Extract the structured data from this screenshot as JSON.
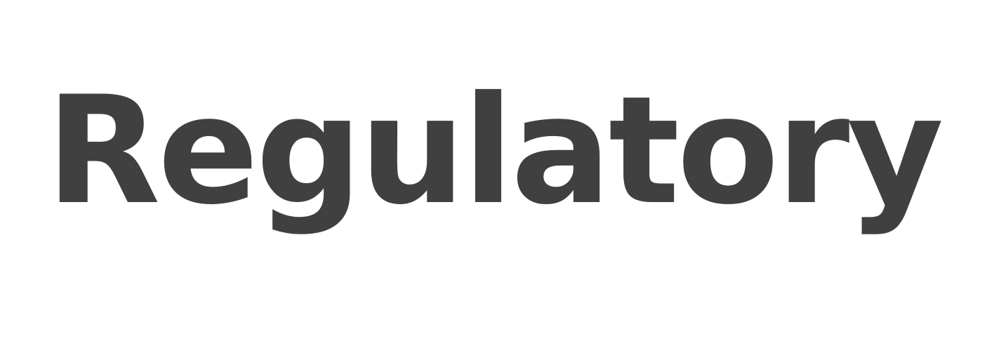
{
  "word": "Regulatory",
  "colors": {
    "text": "#404040",
    "background": "#ffffff"
  }
}
